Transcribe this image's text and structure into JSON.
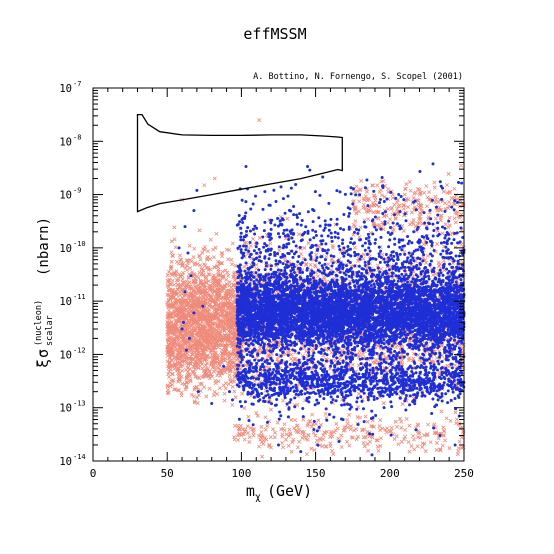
{
  "chart_data": {
    "type": "scatter",
    "title": "effMSSM",
    "annotation": "A. Bottino, N. Fornengo, S. Scopel (2001)",
    "xlabel": "m",
    "xlabel_sub": "χ",
    "xlabel_unit": "(GeV)",
    "ylabel_xi": "ξ",
    "ylabel_sigma": "σ",
    "ylabel_sup": "(nucleon)",
    "ylabel_sub": "scalar",
    "ylabel_unit": "(nbarn)",
    "xlim": [
      0,
      250
    ],
    "ylim": [
      1e-14,
      1e-07
    ],
    "yscale": "log",
    "x_ticks": [
      0,
      50,
      100,
      150,
      200,
      250
    ],
    "x_tick_labels": [
      "0",
      "50",
      "100",
      "150",
      "200",
      "250"
    ],
    "y_ticks_exp": [
      -14,
      -13,
      -12,
      -11,
      -10,
      -9,
      -8,
      -7
    ],
    "y_tick_labels": [
      "10",
      "10",
      "10",
      "10",
      "10",
      "10",
      "10",
      "10"
    ],
    "y_tick_exponent_labels": [
      "-14",
      "-13",
      "-12",
      "-11",
      "-10",
      "-9",
      "-8",
      "-7"
    ],
    "grid": false,
    "series": [
      {
        "marker": "cross",
        "color": "#f08a7a",
        "regions": [
          {
            "x": [
              50,
              100
            ],
            "log10y": [
              -13.0,
              -10.0
            ],
            "count": 1500
          },
          {
            "x": [
              50,
              250
            ],
            "log10y": [
              -13.3,
              -9.3
            ],
            "count": 2200
          },
          {
            "x": [
              95,
              250
            ],
            "log10y": [
              -14.0,
              -13.0
            ],
            "count": 280
          },
          {
            "x": [
              175,
              250
            ],
            "log10y": [
              -10.0,
              -8.5
            ],
            "count": 250
          }
        ],
        "points": [
          {
            "x": 112,
            "y": 2.5e-08
          },
          {
            "x": 75,
            "y": 1.5e-09
          },
          {
            "x": 82,
            "y": 2e-09
          },
          {
            "x": 60,
            "y": 8e-10
          },
          {
            "x": 248,
            "y": 3.5e-09
          }
        ]
      },
      {
        "marker": "dot",
        "color": "#1f2fd6",
        "regions": [
          {
            "x": [
              97,
              250
            ],
            "log10y": [
              -12.1,
              -10.3
            ],
            "count": 4500
          },
          {
            "x": [
              97,
              250
            ],
            "log10y": [
              -13.8,
              -8.3
            ],
            "count": 2500
          },
          {
            "x": [
              97,
              250
            ],
            "log10y": [
              -13.0,
              -12.0
            ],
            "count": 900
          }
        ],
        "points": [
          {
            "x": 62,
            "y": 2.5e-10
          },
          {
            "x": 68,
            "y": 5e-10
          },
          {
            "x": 58,
            "y": 1e-10
          },
          {
            "x": 70,
            "y": 1.2e-09
          },
          {
            "x": 64,
            "y": 8e-11
          },
          {
            "x": 66,
            "y": 3e-11
          },
          {
            "x": 62,
            "y": 1.5e-11
          },
          {
            "x": 68,
            "y": 6e-12
          },
          {
            "x": 60,
            "y": 3e-12
          },
          {
            "x": 65,
            "y": 2e-12
          },
          {
            "x": 63,
            "y": 1.2e-12
          },
          {
            "x": 88,
            "y": 6e-13
          },
          {
            "x": 92,
            "y": 2e-13
          },
          {
            "x": 94,
            "y": 1.4e-13
          },
          {
            "x": 71,
            "y": 2e-13
          },
          {
            "x": 80,
            "y": 1.2e-13
          },
          {
            "x": 61,
            "y": 4e-12
          },
          {
            "x": 74,
            "y": 8e-12
          },
          {
            "x": 125,
            "y": 2e-14
          },
          {
            "x": 140,
            "y": 1.5e-14
          },
          {
            "x": 188,
            "y": 1.3e-14
          },
          {
            "x": 244,
            "y": 2e-14
          }
        ]
      }
    ],
    "contour": {
      "x": [
        30,
        30,
        33,
        37,
        45,
        60,
        80,
        100,
        120,
        140,
        155,
        165,
        168,
        168,
        165,
        155,
        140,
        120,
        100,
        80,
        60,
        45,
        36,
        30
      ],
      "log10y": [
        -8.38,
        -7.5,
        -7.5,
        -7.68,
        -7.82,
        -7.88,
        -7.89,
        -7.89,
        -7.88,
        -7.88,
        -7.9,
        -7.92,
        -7.93,
        -8.55,
        -8.53,
        -8.6,
        -8.7,
        -8.8,
        -8.9,
        -9.0,
        -9.1,
        -9.17,
        -9.25,
        -9.32
      ]
    }
  }
}
